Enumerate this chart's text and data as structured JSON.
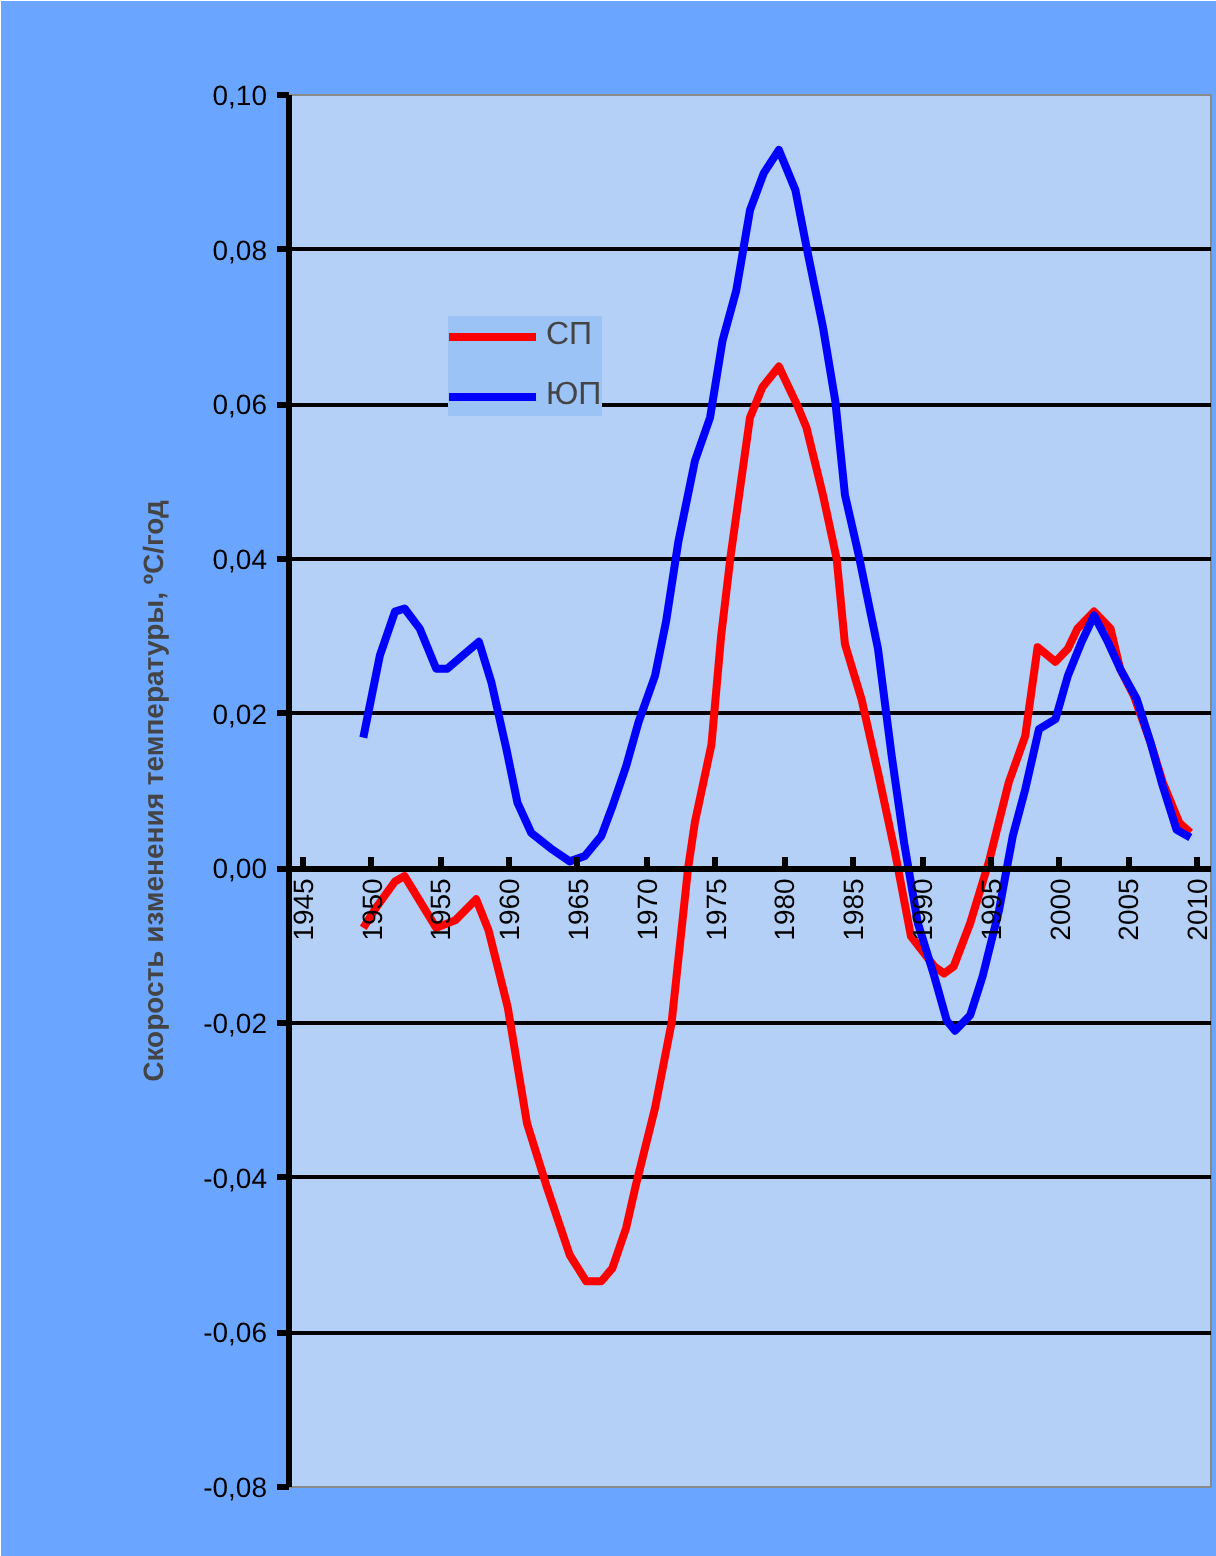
{
  "chart_data": {
    "type": "line",
    "ylabel": "Скорость изменения температуры, ºС/год",
    "xlim": [
      1944,
      2011
    ],
    "xticks": [
      1945,
      1950,
      1955,
      1960,
      1965,
      1970,
      1975,
      1980,
      1985,
      1990,
      1995,
      2000,
      2005,
      2010
    ],
    "ylim": [
      -0.08,
      0.1
    ],
    "yticks": [
      {
        "value": -0.08,
        "label": "-0,08"
      },
      {
        "value": -0.06,
        "label": "-0,06"
      },
      {
        "value": -0.04,
        "label": "-0,04"
      },
      {
        "value": -0.02,
        "label": "-0,02"
      },
      {
        "value": 0,
        "label": "0,00"
      },
      {
        "value": 0.02,
        "label": "0,02"
      },
      {
        "value": 0.04,
        "label": "0,04"
      },
      {
        "value": 0.06,
        "label": "0,06"
      },
      {
        "value": 0.08,
        "label": "0,08"
      },
      {
        "value": 0.1,
        "label": "0,10"
      }
    ],
    "grid": "y",
    "legend": "top left",
    "marker": "none",
    "line_style": "solid",
    "series": [
      {
        "name": "СП",
        "color": "#ff0000",
        "x": [
          1949.4,
          1950.4,
          1951.7,
          1952.4,
          1954.7,
          1956.1,
          1957.6,
          1958.5,
          1959.9,
          1961.3,
          1962.7,
          1964.4,
          1965.6,
          1966.7,
          1967.5,
          1968.5,
          1969.2,
          1970.6,
          1971.8,
          1973.0,
          1973.5,
          1974.7,
          1975.4,
          1976.1,
          1977.5,
          1978.4,
          1979.6,
          1980.9,
          1981.6,
          1982.8,
          1983.8,
          1984.4,
          1985.6,
          1986.8,
          1988.0,
          1989.2,
          1990.9,
          1991.6,
          1992.3,
          1993.5,
          1994.9,
          1996.3,
          1997.5,
          1998.4,
          1999.7,
          2000.6,
          2001.3,
          2002.5,
          2003.7,
          2004.4,
          2005.4,
          2006.6,
          2007.5,
          2008.7,
          2009.5
        ],
        "values": [
          -0.0077,
          -0.0049,
          -0.0017,
          -0.001,
          -0.0077,
          -0.0067,
          -0.004,
          -0.008,
          -0.018,
          -0.033,
          -0.041,
          -0.05,
          -0.0534,
          -0.0534,
          -0.0517,
          -0.0465,
          -0.041,
          -0.031,
          -0.02,
          0.0,
          0.006,
          0.016,
          0.03,
          0.0405,
          0.0583,
          0.0622,
          0.0649,
          0.06,
          0.057,
          0.0483,
          0.04,
          0.029,
          0.0219,
          0.0124,
          0.0024,
          -0.0088,
          -0.0127,
          -0.0136,
          -0.0127,
          -0.0071,
          0.0011,
          0.0111,
          0.0171,
          0.0286,
          0.0267,
          0.0284,
          0.031,
          0.0332,
          0.031,
          0.0258,
          0.0223,
          0.0163,
          0.0111,
          0.0059,
          0.0046
        ]
      },
      {
        "name": "ЮП",
        "color": "#0000ff",
        "x": [
          1949.4,
          1950.6,
          1951.7,
          1952.4,
          1953.5,
          1954.7,
          1955.5,
          1956.6,
          1957.8,
          1958.7,
          1959.8,
          1960.6,
          1961.6,
          1963.0,
          1964.4,
          1965.5,
          1966.7,
          1967.5,
          1968.5,
          1969.4,
          1970.6,
          1971.4,
          1972.3,
          1973.5,
          1974.6,
          1975.5,
          1976.5,
          1977.5,
          1978.5,
          1979.6,
          1980.8,
          1981.6,
          1982.8,
          1983.7,
          1984.4,
          1985.4,
          1986.3,
          1986.8,
          1987.8,
          1988.7,
          1989.7,
          1990.9,
          1991.8,
          1992.4,
          1993.5,
          1994.4,
          1995.6,
          1996.6,
          1997.5,
          1998.5,
          1999.7,
          2000.6,
          2001.6,
          2002.5,
          2003.5,
          2004.4,
          2005.6,
          2006.6,
          2007.5,
          2008.5,
          2009.5
        ],
        "values": [
          0.0169,
          0.0275,
          0.0332,
          0.0336,
          0.031,
          0.0258,
          0.0258,
          0.0275,
          0.0293,
          0.0241,
          0.0154,
          0.0085,
          0.0046,
          0.0026,
          0.0009,
          0.0016,
          0.0042,
          0.008,
          0.0132,
          0.0189,
          0.0249,
          0.0319,
          0.0423,
          0.0527,
          0.0583,
          0.0682,
          0.0747,
          0.0851,
          0.0899,
          0.0929,
          0.0877,
          0.0804,
          0.07,
          0.0604,
          0.0483,
          0.0405,
          0.0327,
          0.0284,
          0.0145,
          0.0033,
          -0.0071,
          -0.014,
          -0.0197,
          -0.021,
          -0.019,
          -0.014,
          -0.0054,
          0.0042,
          0.0102,
          0.018,
          0.0193,
          0.0249,
          0.0293,
          0.0327,
          0.0293,
          0.0258,
          0.0219,
          0.0163,
          0.0106,
          0.005,
          0.004
        ]
      }
    ]
  }
}
